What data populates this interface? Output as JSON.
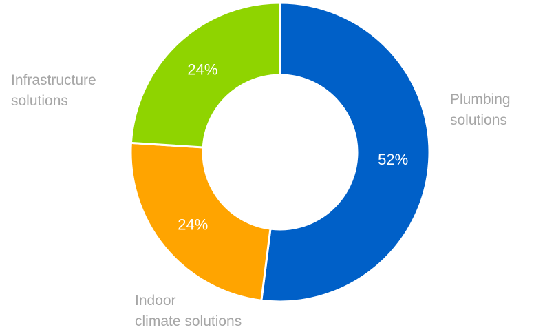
{
  "chart_data": {
    "type": "pie",
    "variant": "donut",
    "slices": [
      {
        "label_lines": [
          "Plumbing",
          "solutions"
        ],
        "value": 52,
        "value_label": "52%",
        "color": "#0060c8"
      },
      {
        "label_lines": [
          "Indoor",
          "climate solutions"
        ],
        "value": 24,
        "value_label": "24%",
        "color": "#ffa400"
      },
      {
        "label_lines": [
          "Infrastructure",
          "solutions"
        ],
        "value": 24,
        "value_label": "24%",
        "color": "#8fd400"
      }
    ],
    "start_angle_deg": 0,
    "direction": "clockwise",
    "legend": "none"
  }
}
